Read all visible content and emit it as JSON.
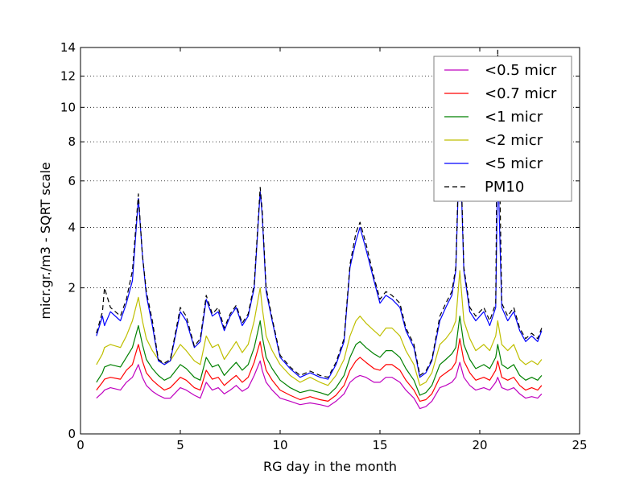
{
  "chart_data": {
    "type": "line",
    "title": "",
    "xlabel": "RG day in the month",
    "ylabel": "micr.gr./m3 - SQRT scale",
    "xlim": [
      0,
      25
    ],
    "ylim": [
      0,
      14
    ],
    "y_scale": "sqrt",
    "x_ticks": [
      0,
      5,
      10,
      15,
      20,
      25
    ],
    "x_tick_labels": [
      "0",
      "5",
      "10",
      "15",
      "20",
      "25"
    ],
    "y_ticks": [
      0,
      2,
      4,
      6,
      8,
      10,
      12,
      14
    ],
    "y_tick_labels": [
      "0",
      "2",
      "4",
      "6",
      "8",
      "10",
      "12",
      "14"
    ],
    "grid": "horizontal dotted",
    "legend_position": "top-right",
    "x": [
      0.8,
      1.1,
      1.2,
      1.5,
      2.0,
      2.3,
      2.6,
      2.9,
      3.1,
      3.3,
      3.6,
      3.9,
      4.2,
      4.5,
      5.0,
      5.3,
      5.7,
      6.0,
      6.3,
      6.6,
      6.9,
      7.2,
      7.5,
      7.8,
      8.1,
      8.4,
      8.7,
      9.0,
      9.1,
      9.3,
      9.6,
      10.0,
      10.5,
      11.0,
      11.5,
      12.0,
      12.4,
      12.8,
      13.2,
      13.5,
      13.8,
      14.0,
      14.3,
      14.7,
      15.0,
      15.3,
      15.6,
      16.0,
      16.3,
      16.7,
      17.0,
      17.3,
      17.6,
      18.0,
      18.3,
      18.6,
      18.8,
      19.0,
      19.2,
      19.5,
      19.8,
      20.2,
      20.5,
      20.8,
      20.9,
      21.1,
      21.4,
      21.7,
      22.0,
      22.3,
      22.6,
      22.9,
      23.1
    ],
    "series": [
      {
        "name": "<0.5 micr",
        "color": "#bf00bf",
        "style": "solid",
        "values": [
          0.12,
          0.16,
          0.18,
          0.2,
          0.18,
          0.25,
          0.3,
          0.45,
          0.3,
          0.22,
          0.17,
          0.14,
          0.12,
          0.12,
          0.2,
          0.18,
          0.14,
          0.12,
          0.25,
          0.18,
          0.2,
          0.15,
          0.18,
          0.22,
          0.17,
          0.2,
          0.32,
          0.5,
          0.38,
          0.25,
          0.18,
          0.12,
          0.1,
          0.08,
          0.09,
          0.08,
          0.07,
          0.1,
          0.15,
          0.25,
          0.3,
          0.32,
          0.3,
          0.25,
          0.25,
          0.3,
          0.3,
          0.25,
          0.18,
          0.12,
          0.06,
          0.07,
          0.1,
          0.2,
          0.22,
          0.25,
          0.3,
          0.48,
          0.3,
          0.22,
          0.18,
          0.2,
          0.18,
          0.25,
          0.3,
          0.2,
          0.18,
          0.2,
          0.15,
          0.12,
          0.13,
          0.12,
          0.15
        ]
      },
      {
        "name": "<0.7 micr",
        "color": "#ff0000",
        "style": "solid",
        "values": [
          0.18,
          0.25,
          0.28,
          0.3,
          0.28,
          0.38,
          0.45,
          0.75,
          0.5,
          0.35,
          0.27,
          0.22,
          0.18,
          0.2,
          0.3,
          0.27,
          0.2,
          0.18,
          0.38,
          0.28,
          0.3,
          0.22,
          0.27,
          0.32,
          0.25,
          0.3,
          0.48,
          0.8,
          0.6,
          0.38,
          0.27,
          0.18,
          0.14,
          0.11,
          0.13,
          0.11,
          0.1,
          0.14,
          0.22,
          0.38,
          0.5,
          0.55,
          0.48,
          0.4,
          0.38,
          0.45,
          0.45,
          0.38,
          0.27,
          0.18,
          0.1,
          0.11,
          0.15,
          0.3,
          0.35,
          0.4,
          0.48,
          0.85,
          0.5,
          0.35,
          0.27,
          0.3,
          0.27,
          0.38,
          0.5,
          0.3,
          0.27,
          0.3,
          0.22,
          0.18,
          0.2,
          0.18,
          0.22
        ]
      },
      {
        "name": "<1 micr",
        "color": "#008000",
        "style": "solid",
        "values": [
          0.25,
          0.35,
          0.42,
          0.45,
          0.42,
          0.55,
          0.7,
          1.1,
          0.75,
          0.52,
          0.4,
          0.32,
          0.27,
          0.3,
          0.45,
          0.4,
          0.3,
          0.27,
          0.55,
          0.42,
          0.45,
          0.32,
          0.4,
          0.48,
          0.38,
          0.45,
          0.7,
          1.2,
          0.9,
          0.55,
          0.4,
          0.27,
          0.2,
          0.16,
          0.18,
          0.16,
          0.14,
          0.2,
          0.32,
          0.55,
          0.75,
          0.8,
          0.7,
          0.6,
          0.55,
          0.65,
          0.65,
          0.55,
          0.4,
          0.27,
          0.14,
          0.16,
          0.22,
          0.45,
          0.52,
          0.6,
          0.7,
          1.3,
          0.75,
          0.52,
          0.4,
          0.45,
          0.4,
          0.55,
          0.75,
          0.45,
          0.4,
          0.45,
          0.32,
          0.27,
          0.3,
          0.27,
          0.32
        ]
      },
      {
        "name": "<2 micr",
        "color": "#bfbf00",
        "style": "solid",
        "values": [
          0.45,
          0.6,
          0.7,
          0.75,
          0.7,
          0.9,
          1.2,
          1.75,
          1.2,
          0.85,
          0.65,
          0.52,
          0.45,
          0.5,
          0.75,
          0.65,
          0.5,
          0.45,
          0.9,
          0.7,
          0.75,
          0.52,
          0.65,
          0.8,
          0.62,
          0.75,
          1.2,
          2.0,
          1.5,
          0.9,
          0.65,
          0.45,
          0.32,
          0.25,
          0.3,
          0.25,
          0.22,
          0.32,
          0.52,
          0.9,
          1.2,
          1.3,
          1.15,
          1.0,
          0.9,
          1.05,
          1.05,
          0.9,
          0.65,
          0.45,
          0.22,
          0.25,
          0.35,
          0.75,
          0.85,
          1.0,
          1.2,
          2.5,
          1.2,
          0.85,
          0.65,
          0.75,
          0.65,
          0.9,
          1.2,
          0.75,
          0.65,
          0.75,
          0.52,
          0.45,
          0.5,
          0.45,
          0.52
        ]
      },
      {
        "name": "<5 micr",
        "color": "#0000ff",
        "style": "solid",
        "values": [
          0.9,
          1.3,
          1.1,
          1.4,
          1.2,
          1.6,
          2.2,
          5.2,
          3.0,
          1.8,
          1.1,
          0.5,
          0.45,
          0.5,
          1.4,
          1.2,
          0.7,
          0.8,
          1.7,
          1.3,
          1.4,
          1.0,
          1.3,
          1.5,
          1.1,
          1.3,
          2.0,
          5.5,
          4.5,
          1.9,
          1.2,
          0.55,
          0.4,
          0.3,
          0.35,
          0.3,
          0.28,
          0.45,
          0.8,
          2.6,
          3.5,
          4.0,
          3.2,
          2.2,
          1.6,
          1.8,
          1.7,
          1.5,
          1.0,
          0.7,
          0.3,
          0.35,
          0.5,
          1.2,
          1.5,
          1.8,
          2.5,
          8.3,
          2.5,
          1.4,
          1.2,
          1.4,
          1.1,
          1.5,
          7.0,
          1.5,
          1.2,
          1.4,
          1.0,
          0.8,
          0.9,
          0.8,
          1.0
        ]
      },
      {
        "name": "PM10",
        "color": "#000000",
        "style": "dashed",
        "values": [
          0.95,
          1.4,
          2.0,
          1.5,
          1.3,
          1.7,
          2.5,
          5.4,
          3.0,
          1.9,
          1.2,
          0.52,
          0.47,
          0.52,
          1.5,
          1.3,
          0.72,
          0.85,
          1.8,
          1.35,
          1.5,
          1.05,
          1.35,
          1.55,
          1.15,
          1.35,
          2.1,
          5.7,
          4.7,
          2.0,
          1.25,
          0.58,
          0.42,
          0.32,
          0.37,
          0.32,
          0.3,
          0.48,
          0.85,
          2.7,
          3.8,
          4.2,
          3.4,
          2.3,
          1.7,
          1.9,
          1.8,
          1.6,
          1.05,
          0.75,
          0.32,
          0.37,
          0.52,
          1.3,
          1.6,
          1.9,
          2.6,
          9.0,
          2.6,
          1.5,
          1.3,
          1.5,
          1.2,
          1.6,
          13.8,
          1.6,
          1.3,
          1.5,
          1.05,
          0.85,
          0.95,
          0.85,
          1.05
        ]
      }
    ]
  }
}
